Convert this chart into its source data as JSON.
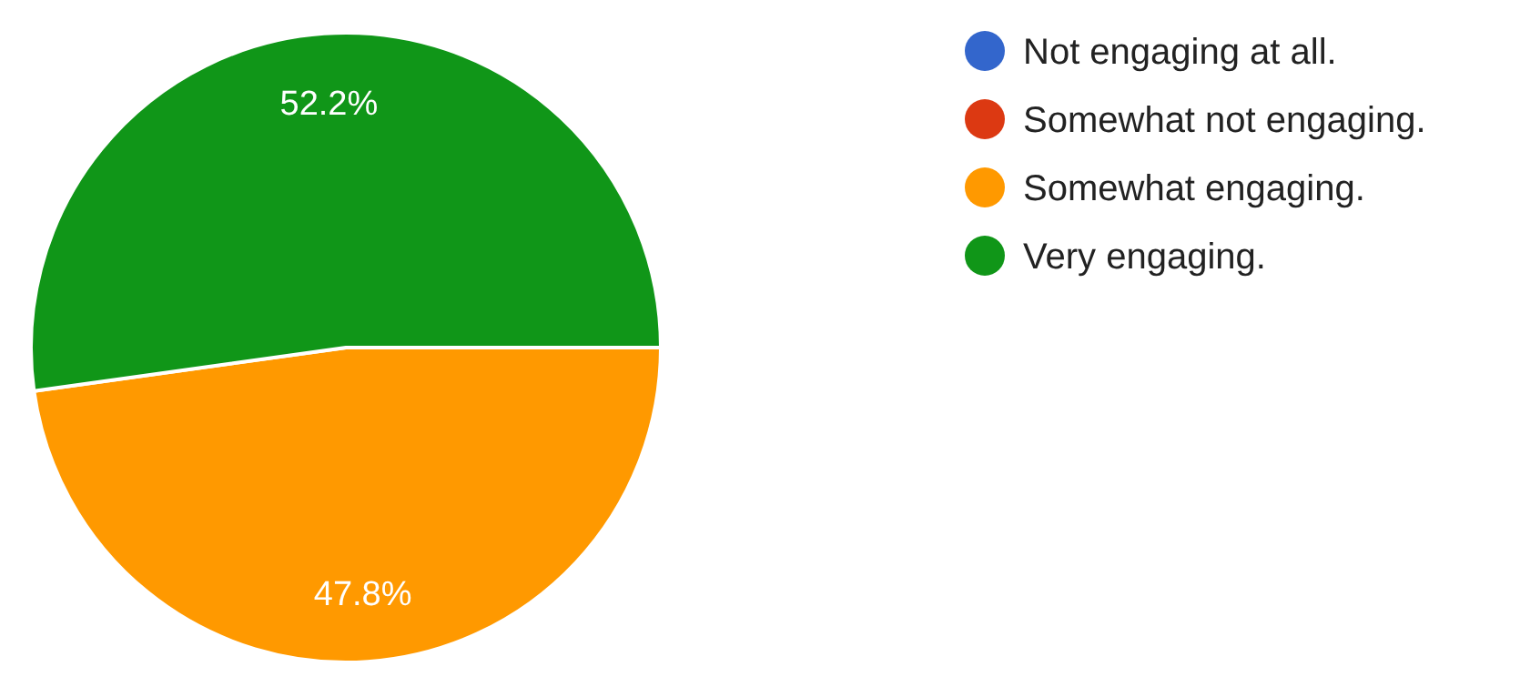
{
  "chart_data": {
    "type": "pie",
    "categories": [
      "Not engaging at all.",
      "Somewhat not engaging.",
      "Somewhat engaging.",
      "Very engaging."
    ],
    "values": [
      0,
      0,
      47.8,
      52.2
    ],
    "colors": [
      "#3366cc",
      "#dc3912",
      "#ff9900",
      "#109618"
    ],
    "value_labels": [
      null,
      null,
      "47.8%",
      "52.2%"
    ],
    "legend": "top right"
  }
}
